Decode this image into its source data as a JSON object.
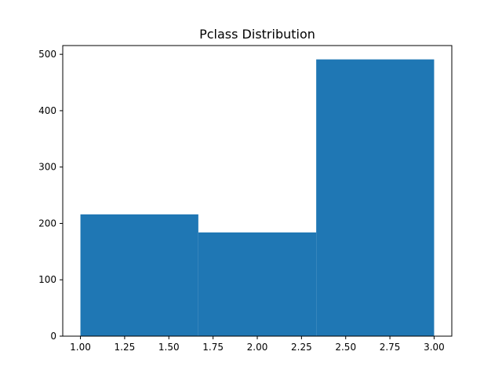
{
  "chart_data": {
    "type": "bar",
    "title": "Pclass Distribution",
    "xlabel": "",
    "ylabel": "",
    "bins": [
      {
        "x0": 1.0,
        "x1": 1.6667,
        "value": 216
      },
      {
        "x0": 1.6667,
        "x1": 2.3333,
        "value": 184
      },
      {
        "x0": 2.3333,
        "x1": 3.0,
        "value": 491
      }
    ],
    "xlim": [
      0.9,
      3.1
    ],
    "ylim": [
      0,
      515.55
    ],
    "xticks": [
      1.0,
      1.25,
      1.5,
      1.75,
      2.0,
      2.25,
      2.5,
      2.75,
      3.0
    ],
    "xtick_labels": [
      "1.00",
      "1.25",
      "1.50",
      "1.75",
      "2.00",
      "2.25",
      "2.50",
      "2.75",
      "3.00"
    ],
    "yticks": [
      0,
      100,
      200,
      300,
      400,
      500
    ],
    "ytick_labels": [
      "0",
      "100",
      "200",
      "300",
      "400",
      "500"
    ],
    "bar_color": "#1f77b4",
    "grid": false,
    "legend": "none"
  }
}
